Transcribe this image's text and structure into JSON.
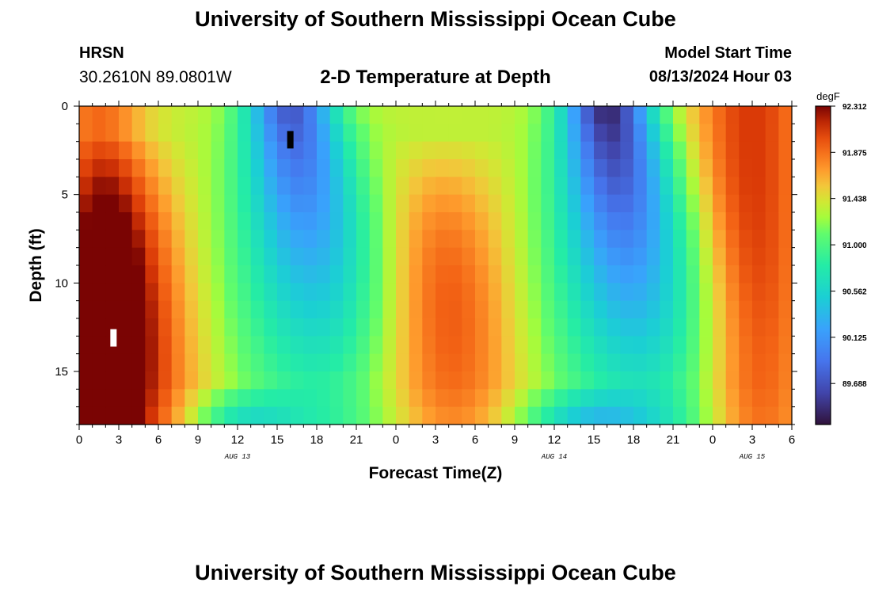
{
  "header": {
    "title": "University of Southern Mississippi Ocean Cube",
    "station": "HRSN",
    "coordinates": "30.2610N  89.0801W",
    "subtitle": "2-D Temperature at Depth",
    "model_start_label": "Model Start Time",
    "model_start_value": "08/13/2024 Hour 03"
  },
  "footer": {
    "title": "University of Southern Mississippi Ocean Cube"
  },
  "chart_data": {
    "type": "heatmap",
    "title": "2-D Temperature at Depth",
    "xlabel": "Forecast Time(Z)",
    "ylabel": "Depth (ft)",
    "x_unit": "hours since 2024-08-13 00Z",
    "xlim": [
      0,
      54
    ],
    "ylim": [
      0,
      18
    ],
    "y_inverted": true,
    "x_ticks": [
      0,
      3,
      6,
      9,
      12,
      15,
      18,
      21,
      24,
      27,
      30,
      33,
      36,
      39,
      42,
      45,
      48,
      51,
      54
    ],
    "x_tick_labels": [
      "0",
      "3",
      "6",
      "9",
      "12",
      "15",
      "18",
      "21",
      "0",
      "3",
      "6",
      "9",
      "12",
      "15",
      "18",
      "21",
      "0",
      "3",
      "6"
    ],
    "y_ticks": [
      0,
      5,
      10,
      15
    ],
    "y_tick_labels": [
      "0",
      "5",
      "10",
      "15"
    ],
    "date_labels": [
      {
        "x": 12,
        "text": "AUG 13"
      },
      {
        "x": 36,
        "text": "AUG 14"
      },
      {
        "x": 51,
        "text": "AUG 15"
      }
    ],
    "colorbar": {
      "unit": "degF",
      "min": 89.3,
      "max": 92.312,
      "tick_values": [
        92.312,
        91.875,
        91.438,
        91.0,
        90.562,
        90.125,
        89.688
      ],
      "tick_labels": [
        "92.312",
        "91.875",
        "91.438",
        "91.000",
        "90.562",
        "90.125",
        "89.688"
      ]
    },
    "markers": [
      {
        "type": "max",
        "x": 2.6,
        "y": 13.1,
        "color": "#ffffff"
      },
      {
        "type": "min",
        "x": 16.0,
        "y": 1.9,
        "color": "#000000"
      }
    ],
    "series": [
      {
        "name": "warm pulse 1 (surface)",
        "kind": "warm",
        "center_hour": 1.5,
        "width_hours": 3.5,
        "peak_delta_degF": 0.55
      },
      {
        "name": "warm pulse 1 (subsurface)",
        "kind": "warm",
        "center_hour": 3.0,
        "depth_ft": 13.5,
        "width_hours": 4.0,
        "peak_delta_degF": 0.9
      },
      {
        "name": "cool trough 1",
        "kind": "cool",
        "center_hour": 16.0,
        "depth_ft": 2.0,
        "width_hours": 3.5,
        "peak_delta_degF": -1.65
      },
      {
        "name": "warm pulse 2",
        "kind": "warm",
        "center_hour": 27.5,
        "depth_ft": 13.5,
        "width_hours": 4.0,
        "peak_delta_degF": 0.7
      },
      {
        "name": "cool trough 2",
        "kind": "cool",
        "center_hour": 40.0,
        "depth_ft": 1.5,
        "width_hours": 3.5,
        "peak_delta_degF": -1.95
      },
      {
        "name": "warm plateau 3",
        "kind": "warm",
        "center_hour": 51.0,
        "width_hours": 4.5,
        "peak_delta_degF": 0.75
      }
    ],
    "baseline_degF": 91.35,
    "grid_resolution": {
      "x_step_hours": 1,
      "y_step_ft": 1
    }
  }
}
